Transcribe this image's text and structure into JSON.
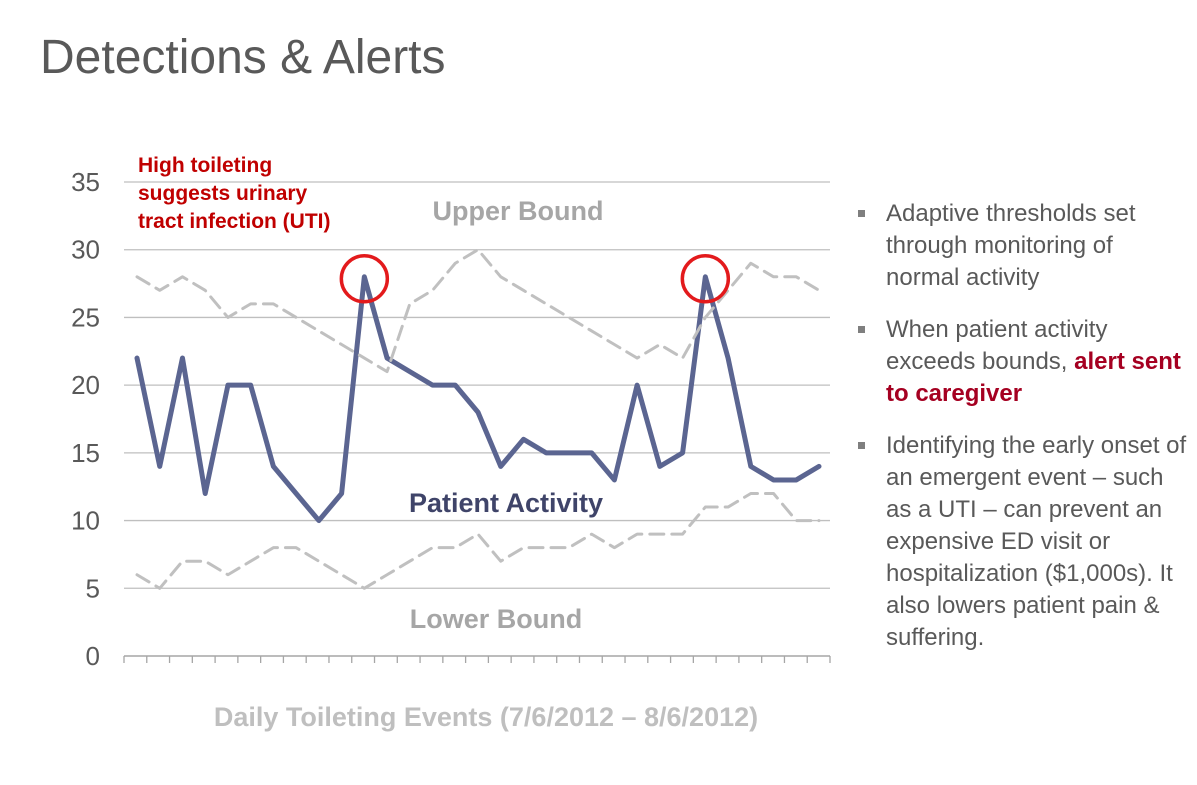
{
  "page": {
    "title": "Detections & Alerts"
  },
  "bullets": [
    {
      "text": "Adaptive thresholds set through monitoring of normal activity"
    },
    {
      "text": "When patient activity exceeds bounds, ",
      "emphasis": "alert sent to caregiver"
    },
    {
      "text": "Identifying the early onset of an emergent event – such as a UTI – can  prevent an expensive ED visit or hospitalization ($1,000s). It also lowers patient pain & suffering."
    }
  ],
  "colors": {
    "patient_line": "#5b6591",
    "bound_line": "#c0c0c0",
    "alert_text": "#c00000",
    "circle": "#e31a1c",
    "grid": "#bfbfbf"
  },
  "chart_data": {
    "type": "line",
    "title": "",
    "xlabel": "Daily Toileting  Events (7/6/2012 – 8/6/2012)",
    "ylabel": "",
    "ylim": [
      0,
      35
    ],
    "yticks": [
      0,
      5,
      10,
      15,
      20,
      25,
      30,
      35
    ],
    "grid": true,
    "x_count": 31,
    "series": [
      {
        "name": "Patient Activity",
        "style": "solid",
        "values": [
          22,
          14,
          22,
          12,
          20,
          20,
          14,
          12,
          10,
          12,
          28,
          22,
          21,
          20,
          20,
          18,
          14,
          16,
          15,
          15,
          15,
          13,
          20,
          14,
          15,
          28,
          22,
          14,
          13,
          13,
          14
        ]
      },
      {
        "name": "Upper Bound",
        "style": "dashed",
        "values": [
          28,
          27,
          28,
          27,
          25,
          26,
          26,
          25,
          24,
          23,
          22,
          21,
          26,
          27,
          29,
          30,
          28,
          27,
          26,
          25,
          24,
          23,
          22,
          23,
          22,
          25,
          27,
          29,
          28,
          28,
          27
        ]
      },
      {
        "name": "Lower Bound",
        "style": "dashed",
        "values": [
          6,
          5,
          7,
          7,
          6,
          7,
          8,
          8,
          7,
          6,
          5,
          6,
          7,
          8,
          8,
          9,
          7,
          8,
          8,
          8,
          9,
          8,
          9,
          9,
          9,
          11,
          11,
          12,
          12,
          10,
          10
        ]
      }
    ],
    "annotations": [
      {
        "text": "High toileting suggests urinary tract infection (UTI)",
        "lines": [
          "High toileting",
          "suggests urinary",
          "tract infection (UTI)"
        ]
      }
    ],
    "highlight_indices": [
      10,
      25
    ]
  }
}
